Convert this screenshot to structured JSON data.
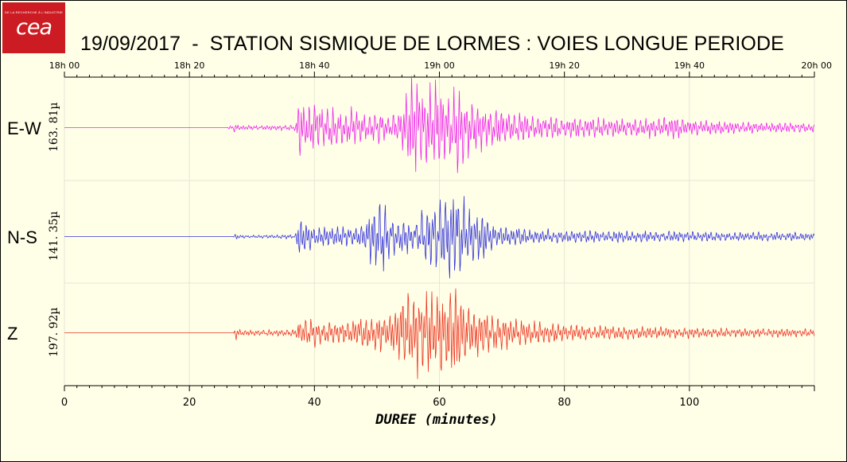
{
  "logo": {
    "text": "cea",
    "tagline": "DE LA RECHERCHE À L'INDUSTRIE"
  },
  "title": "19/09/2017  -  STATION SISMIQUE DE LORMES : VOIES LONGUE PERIODE",
  "chart_data": {
    "type": "line",
    "title": "19/09/2017  -  STATION SISMIQUE DE LORMES : VOIES LONGUE PERIODE",
    "xlabel": "DUREE (minutes)",
    "xlim": [
      0,
      120
    ],
    "x_ticks": [
      0,
      20,
      40,
      60,
      80,
      100
    ],
    "x_tick_labels": [
      "0",
      "20",
      "40",
      "60",
      "80",
      "100"
    ],
    "top_ticks": [
      0,
      20,
      40,
      60,
      80,
      100,
      120
    ],
    "top_tick_labels": [
      "18h 00",
      "18h 20",
      "18h 40",
      "19h 00",
      "19h 20",
      "19h 40",
      "20h 00"
    ],
    "grid": true,
    "series": [
      {
        "name": "E-W",
        "amplitude_label": "163. 81µ",
        "color": "#ee22ee",
        "x": [
          0,
          26,
          27.5,
          28,
          29,
          37,
          37.5,
          38,
          40,
          42,
          44,
          46,
          48,
          50,
          51,
          52,
          54,
          55,
          56,
          58,
          59,
          60,
          62,
          63,
          64,
          66,
          68,
          70,
          72,
          76,
          80,
          90,
          98,
          100,
          110,
          120
        ],
        "envelope": [
          0.0,
          0.0,
          0.12,
          0.05,
          0.04,
          0.05,
          0.7,
          0.45,
          0.5,
          0.4,
          0.3,
          0.35,
          0.25,
          0.3,
          0.25,
          0.18,
          0.35,
          0.8,
          0.9,
          0.7,
          1.0,
          0.8,
          0.55,
          0.95,
          0.6,
          0.45,
          0.4,
          0.35,
          0.28,
          0.22,
          0.2,
          0.16,
          0.22,
          0.14,
          0.1,
          0.08
        ]
      },
      {
        "name": "N-S",
        "amplitude_label": "141. 35µ",
        "color": "#3333dd",
        "x": [
          0,
          27,
          27.5,
          28,
          30,
          37,
          37.5,
          38,
          40,
          44,
          46,
          48,
          49,
          50,
          50.5,
          51,
          52,
          54,
          56,
          58,
          60,
          62,
          64,
          66,
          67,
          68,
          70,
          75,
          80,
          90,
          100,
          110,
          120
        ],
        "envelope": [
          0.0,
          0.0,
          0.08,
          0.03,
          0.03,
          0.04,
          0.5,
          0.35,
          0.2,
          0.22,
          0.2,
          0.25,
          0.6,
          0.75,
          0.9,
          1.0,
          0.4,
          0.35,
          0.3,
          0.6,
          0.9,
          0.95,
          0.75,
          0.55,
          0.65,
          0.3,
          0.22,
          0.16,
          0.13,
          0.12,
          0.1,
          0.09,
          0.08
        ]
      },
      {
        "name": "Z",
        "amplitude_label": "197. 92µ",
        "color": "#ee3322",
        "x": [
          0,
          27,
          27.5,
          28,
          30,
          37,
          37.5,
          38,
          40,
          42,
          44,
          46,
          48,
          50,
          52,
          54,
          55,
          56,
          58,
          60,
          62,
          63,
          64,
          66,
          68,
          70,
          72,
          76,
          80,
          90,
          100,
          110,
          120
        ],
        "envelope": [
          0.0,
          0.0,
          0.15,
          0.06,
          0.05,
          0.06,
          0.3,
          0.22,
          0.28,
          0.2,
          0.22,
          0.25,
          0.3,
          0.3,
          0.35,
          0.6,
          0.85,
          0.8,
          0.75,
          0.7,
          0.85,
          1.0,
          0.55,
          0.45,
          0.35,
          0.3,
          0.25,
          0.2,
          0.15,
          0.12,
          0.1,
          0.08,
          0.07
        ]
      }
    ]
  }
}
